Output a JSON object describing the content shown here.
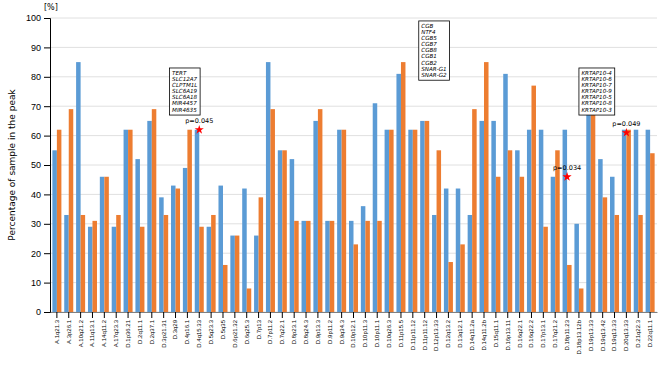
{
  "chart_data": {
    "type": "bar",
    "ylabel": "Percentage of sample in the peak",
    "y_unit": "[%]",
    "categories": [
      "A.1q21.3",
      "A.3p26.1",
      "A.10q21.2",
      "A.11q13.1",
      "A.14q11.2",
      "A.17q23.3",
      "D.1p36.21",
      "D.2q11.1",
      "D.2q37.1",
      "D.3p21.31",
      "D.3q29",
      "D.4p16.1",
      "D.4q15.33",
      "D.5q23.3",
      "D.5q35",
      "D.6p21.32",
      "D.6q25.3",
      "D.7p13",
      "D.7p11.2",
      "D.7q22.1",
      "D.8p23.1",
      "D.8q24.3",
      "D.9p13.3",
      "D.9p11.2",
      "D.9q34.3",
      "D.10p12.1",
      "D.10p11.3",
      "D.10p11.1",
      "D.10q26.3",
      "D.11p15.5",
      "D.11p11.12",
      "D.11p11.12",
      "D.12p13.33",
      "D.12q13.2",
      "D.13q12.1",
      "D.14q11.2a",
      "D.14q11.2b",
      "D.15q11.1",
      "D.16p13.11",
      "D.16q22.1",
      "D.16q22.2",
      "D.17p13.1",
      "D.17q21.2",
      "D.18p11.23",
      "D.18p13.12b",
      "D.19p13.33",
      "D.19q13.42",
      "D.19q13.33",
      "D.20q13.33",
      "D.21q22.3",
      "D.22q11.1"
    ],
    "series": [
      {
        "color": "#5B9BD5",
        "values": [
          55,
          33,
          85,
          29,
          46,
          29,
          62,
          52,
          65,
          39,
          43,
          49,
          62,
          29,
          43,
          26,
          42,
          26,
          85,
          55,
          52,
          31,
          65,
          31,
          62,
          31,
          36,
          71,
          62,
          81,
          62,
          65,
          33,
          42,
          42,
          33,
          65,
          65,
          81,
          55,
          62,
          62,
          46,
          62,
          30,
          81,
          52,
          46,
          62,
          62,
          62
        ]
      },
      {
        "color": "#ED7D31",
        "values": [
          62,
          69,
          33,
          31,
          46,
          33,
          62,
          29,
          69,
          33,
          42,
          62,
          29,
          33,
          16,
          26,
          8,
          39,
          69,
          55,
          31,
          31,
          69,
          31,
          62,
          23,
          31,
          31,
          62,
          85,
          62,
          65,
          55,
          17,
          23,
          69,
          85,
          46,
          55,
          46,
          77,
          29,
          55,
          16,
          8,
          70,
          39,
          33,
          62,
          33,
          54
        ]
      }
    ],
    "ylim": [
      0,
      100
    ],
    "yticks": [
      0,
      10,
      20,
      30,
      40,
      50,
      60,
      70,
      80,
      90,
      100
    ],
    "grid": true,
    "annotations": [
      {
        "text": "p=0.045",
        "x": 12,
        "y": 63
      },
      {
        "text": "p=0.034",
        "x": 43,
        "y": 47
      },
      {
        "text": "p=0.049",
        "x": 48,
        "y": 62
      }
    ],
    "text_boxes": [
      {
        "text": "TERT\nSLC12A7\nCLPTM1L\nSLC6A19\nSLC6A18\nMIR4457\nMIR4635",
        "x": 9.5,
        "y": 83
      },
      {
        "text": "CGB\nNTF4\nCGB5\nCGB7\nCGB8\nCGB1\nCGB2\nSNAR-G1\nSNAR-G2",
        "x": 30.5,
        "y": 99
      },
      {
        "text": "KRTAP10-4\nKRTAP10-6\nKRTAP10-7\nKRTAP10-9\nKRTAP10-5\nKRTAP10-8\nKRTAP10-3",
        "x": 44.0,
        "y": 83
      }
    ]
  }
}
